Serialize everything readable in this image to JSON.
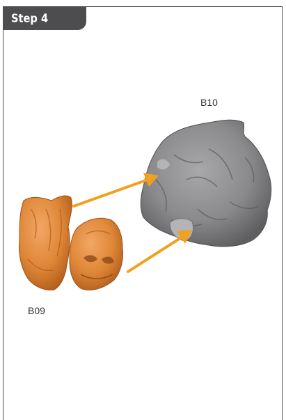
{
  "step": {
    "label": "Step 4"
  },
  "parts": {
    "target_label": "B10",
    "source_label": "B09"
  },
  "colors": {
    "tab": "#4d4d4f",
    "frame": "#4a4a4a",
    "source_part": "#e08a3a",
    "target_part": "#8c8c8e",
    "arrow": "#f2a11f"
  },
  "icons": [
    "arrow-icon",
    "arrow-icon"
  ]
}
